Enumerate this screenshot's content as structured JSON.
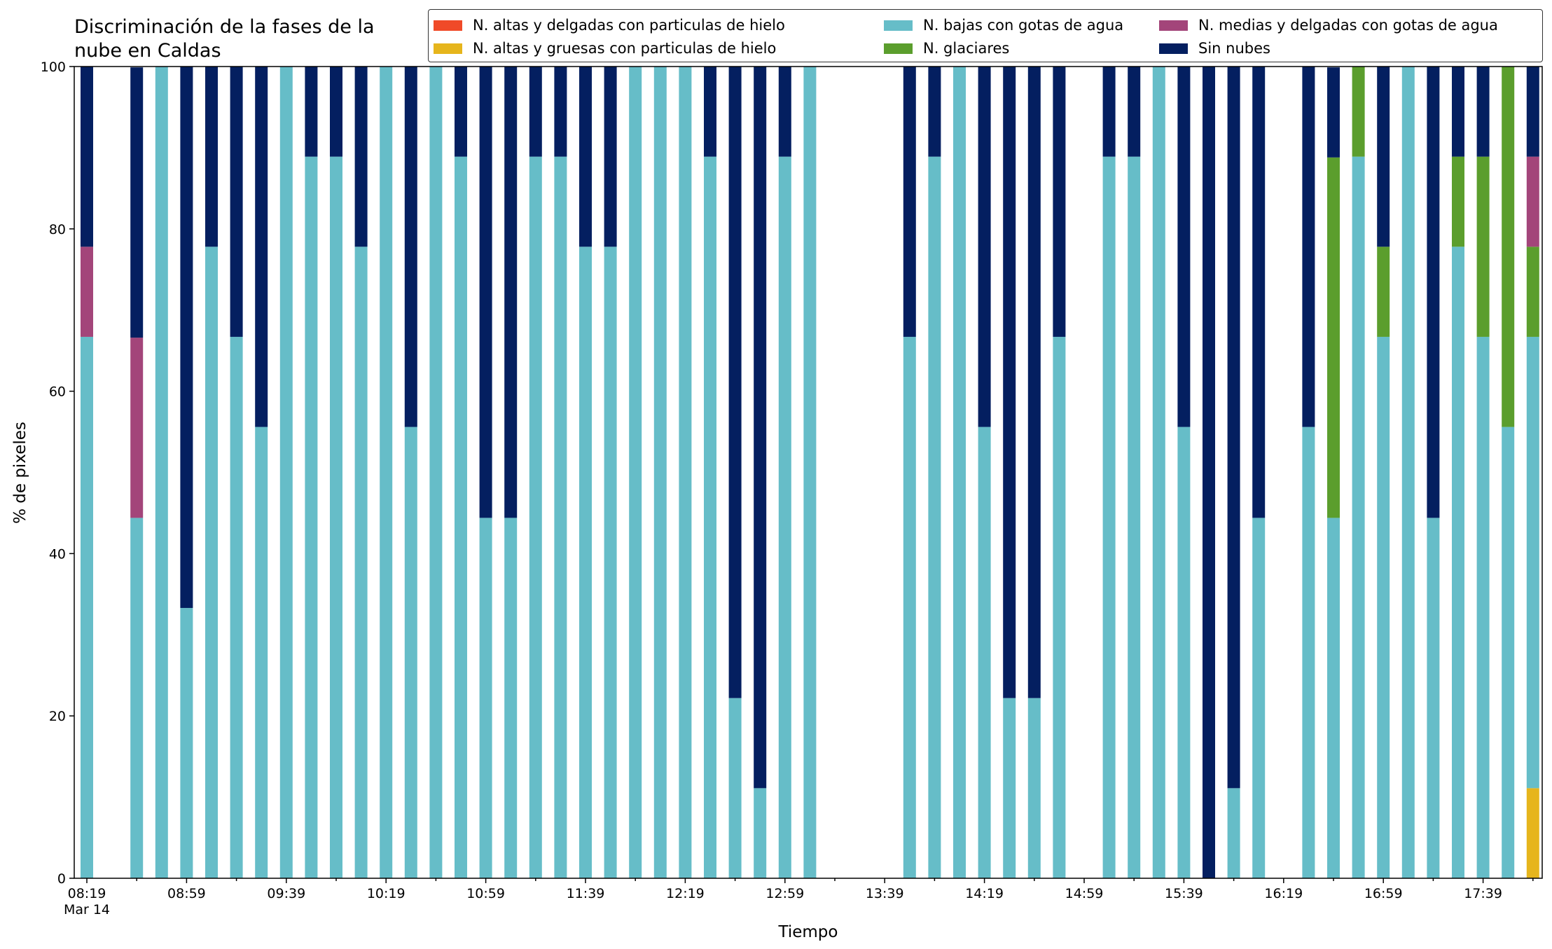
{
  "chart_data": {
    "type": "bar",
    "stacked": true,
    "title": "Discriminación de la fases de la\nnube en Caldas",
    "xlabel": "Tiempo",
    "ylabel": "% de pixeles",
    "ylim": [
      0,
      100
    ],
    "yticks": [
      0,
      20,
      40,
      60,
      80,
      100
    ],
    "grid": false,
    "legend_position": "top-right",
    "x_start": "08:19",
    "x_interval_minutes": 10,
    "x_tick_labels": [
      "08:19\nMar 14",
      "08:59",
      "09:39",
      "10:19",
      "10:59",
      "11:39",
      "12:19",
      "12:59",
      "13:39",
      "14:19",
      "14:59",
      "15:39",
      "16:19",
      "16:59",
      "17:39"
    ],
    "legend_order": [
      "N. altas y delgadas con particulas de hielo",
      "N. altas y gruesas con particulas de hielo",
      "N. bajas con gotas de agua",
      "N. glaciares",
      "N. medias y delgadas con gotas de agua",
      "Sin nubes"
    ],
    "series": [
      {
        "name": "N. altas y gruesas con particulas de hielo",
        "color": "#e6b51c",
        "values": [
          0,
          null,
          0,
          0,
          0,
          0,
          0,
          0,
          0,
          0,
          0,
          0,
          0,
          0,
          0,
          0,
          0,
          0,
          0,
          0,
          0,
          0,
          0,
          0,
          0,
          0,
          0,
          0,
          0,
          0,
          0,
          null,
          null,
          0,
          0,
          0,
          0,
          0,
          0,
          0,
          null,
          0,
          0,
          0,
          0,
          0,
          0,
          0,
          null,
          0,
          0,
          0,
          0,
          0,
          0,
          0,
          0,
          0,
          11.1
        ]
      },
      {
        "name": "N. bajas con gotas de agua",
        "color": "#66bdc8",
        "values": [
          66.7,
          null,
          44.4,
          100,
          33.3,
          77.8,
          66.7,
          55.6,
          100,
          88.9,
          88.9,
          77.8,
          100,
          55.6,
          100,
          88.9,
          44.4,
          44.4,
          88.9,
          88.9,
          77.8,
          77.8,
          100,
          100,
          100,
          88.9,
          22.2,
          11.1,
          88.9,
          100,
          0,
          null,
          null,
          66.7,
          88.9,
          100,
          55.6,
          22.2,
          22.2,
          66.7,
          null,
          88.9,
          88.9,
          100,
          55.6,
          0,
          11.1,
          44.4,
          null,
          55.6,
          44.4,
          88.9,
          66.7,
          100,
          44.4,
          77.8,
          66.7,
          55.6,
          55.6
        ]
      },
      {
        "name": "N. glaciares",
        "color": "#5b9e2d",
        "values": [
          0,
          null,
          0,
          0,
          0,
          0,
          0,
          0,
          0,
          0,
          0,
          0,
          0,
          0,
          0,
          0,
          0,
          0,
          0,
          0,
          0,
          0,
          0,
          0,
          0,
          0,
          0,
          0,
          0,
          0,
          0,
          null,
          null,
          0,
          0,
          0,
          0,
          0,
          0,
          0,
          null,
          0,
          0,
          0,
          0,
          0,
          0,
          0,
          null,
          0,
          44.4,
          11.1,
          11.1,
          0,
          0,
          11.1,
          22.2,
          44.4,
          11.1
        ]
      },
      {
        "name": "N. medias y delgadas con gotas de agua",
        "color": "#a3457a",
        "values": [
          11.1,
          null,
          22.2,
          0,
          0,
          0,
          0,
          0,
          0,
          0,
          0,
          0,
          0,
          0,
          0,
          0,
          0,
          0,
          0,
          0,
          0,
          0,
          0,
          0,
          0,
          0,
          0,
          0,
          0,
          0,
          0,
          null,
          null,
          0,
          0,
          0,
          0,
          0,
          0,
          0,
          null,
          0,
          0,
          0,
          0,
          0,
          0,
          0,
          null,
          0,
          0,
          0,
          0,
          0,
          0,
          0,
          0,
          0,
          11.1
        ]
      },
      {
        "name": "Sin nubes",
        "color": "#041f60",
        "values": [
          22.2,
          null,
          33.3,
          0,
          66.7,
          22.2,
          33.3,
          44.4,
          0,
          11.1,
          11.1,
          22.2,
          0,
          44.4,
          0,
          11.1,
          55.6,
          55.6,
          11.1,
          11.1,
          22.2,
          22.2,
          0,
          0,
          0,
          11.1,
          77.8,
          88.9,
          11.1,
          0,
          0,
          null,
          null,
          33.3,
          11.1,
          0,
          44.4,
          77.8,
          77.8,
          33.3,
          null,
          11.1,
          11.1,
          0,
          44.4,
          100,
          88.9,
          55.6,
          null,
          44.4,
          11.1,
          0,
          22.2,
          0,
          55.6,
          11.1,
          11.1,
          0,
          11.1
        ]
      },
      {
        "name": "N. altas y delgadas con particulas de hielo",
        "color": "#f04a28",
        "values": [
          0,
          null,
          0,
          0,
          0,
          0,
          0,
          0,
          0,
          0,
          0,
          0,
          0,
          0,
          0,
          0,
          0,
          0,
          0,
          0,
          0,
          0,
          0,
          0,
          0,
          0,
          0,
          0,
          0,
          0,
          0,
          null,
          null,
          0,
          0,
          0,
          0,
          0,
          0,
          0,
          null,
          0,
          0,
          0,
          0,
          0,
          0,
          0,
          null,
          0,
          0,
          0,
          0,
          0,
          0,
          0,
          0,
          0,
          0
        ]
      }
    ]
  }
}
